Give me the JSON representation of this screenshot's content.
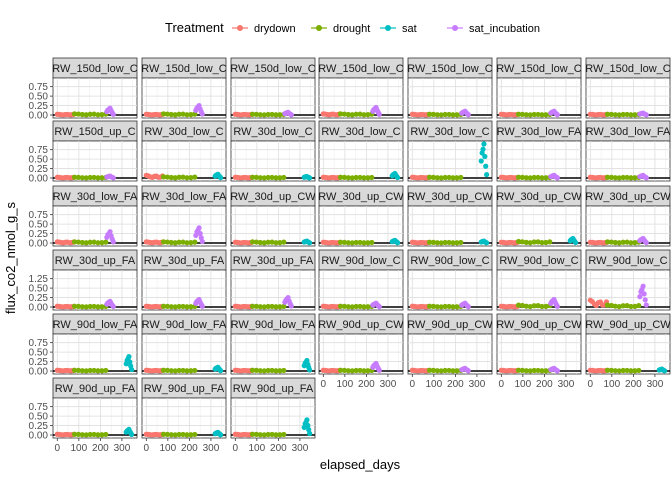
{
  "chart_data": {
    "type": "scatter",
    "xlabel": "elapsed_days",
    "ylabel": "flux_co2_nmol_g_s",
    "legend": {
      "title": "Treatment",
      "position": "top",
      "entries": [
        {
          "name": "drydown",
          "color": "#F8766D"
        },
        {
          "name": "drought",
          "color": "#7CAE00"
        },
        {
          "name": "sat",
          "color": "#00BFC4"
        },
        {
          "name": "sat_incubation",
          "color": "#C77CFF"
        }
      ]
    },
    "xlim": [
      -20,
      370
    ],
    "x_ticks": [
      0,
      100,
      200,
      300
    ],
    "y_ticks_default": [
      "0.00",
      "0.25",
      "0.50",
      "0.75"
    ],
    "y_ticks_row4": [
      "0.00",
      "0.25",
      "0.50",
      "1.25"
    ],
    "grid": true,
    "facets": [
      {
        "label": "RW_150d_low_C",
        "row": 0,
        "col": 0,
        "peaks": {
          "drydown": 0.02,
          "drought": 0.03,
          "sat_incubation": 0.18
        }
      },
      {
        "label": "RW_150d_low_C",
        "row": 0,
        "col": 1,
        "peaks": {
          "drydown": 0.02,
          "drought": 0.03,
          "sat_incubation": 0.25
        }
      },
      {
        "label": "RW_150d_low_C",
        "row": 0,
        "col": 2,
        "peaks": {
          "drydown": 0.02,
          "drought": 0.02,
          "sat_incubation": 0.07
        }
      },
      {
        "label": "RW_150d_low_C",
        "row": 0,
        "col": 3,
        "peaks": {
          "drydown": 0.03,
          "drought": 0.03,
          "sat_incubation": 0.2
        }
      },
      {
        "label": "RW_150d_low_C",
        "row": 0,
        "col": 4,
        "peaks": {
          "drydown": 0.02,
          "drought": 0.02,
          "sat_incubation": 0.1
        }
      },
      {
        "label": "RW_150d_low_C",
        "row": 0,
        "col": 5,
        "peaks": {
          "drydown": 0.02,
          "drought": 0.02,
          "sat_incubation": 0.1
        }
      },
      {
        "label": "RW_150d_low_C",
        "row": 0,
        "col": 6,
        "peaks": {
          "drydown": 0.02,
          "drought": 0.02,
          "sat_incubation": 0.05
        }
      },
      {
        "label": "RW_150d_up_C",
        "row": 1,
        "col": 0,
        "peaks": {
          "drydown": 0.02,
          "drought": 0.02,
          "sat_incubation": 0.05
        }
      },
      {
        "label": "RW_30d_low_C",
        "row": 1,
        "col": 1,
        "peaks": {
          "drydown": 0.07,
          "drought": 0.03,
          "sat": 0.1
        }
      },
      {
        "label": "RW_30d_low_C",
        "row": 1,
        "col": 2,
        "peaks": {
          "drydown": 0.02,
          "drought": 0.02,
          "sat": 0.04
        }
      },
      {
        "label": "RW_30d_low_C",
        "row": 1,
        "col": 3,
        "peaks": {
          "drydown": 0.02,
          "drought": 0.02,
          "sat": 0.12
        }
      },
      {
        "label": "RW_30d_low_C",
        "row": 1,
        "col": 4,
        "peaks": {
          "drydown": 0.02,
          "drought": 0.02,
          "sat": 0.9
        }
      },
      {
        "label": "RW_30d_low_FA",
        "row": 1,
        "col": 5,
        "peaks": {
          "drydown": 0.02,
          "drought": 0.02,
          "sat_incubation": 0.07
        }
      },
      {
        "label": "RW_30d_low_FA",
        "row": 1,
        "col": 6,
        "peaks": {
          "drydown": 0.02,
          "drought": 0.02,
          "sat_incubation": 0.07
        }
      },
      {
        "label": "RW_30d_low_FA",
        "row": 2,
        "col": 0,
        "peaks": {
          "drydown": 0.03,
          "drought": 0.03,
          "sat_incubation": 0.3
        }
      },
      {
        "label": "RW_30d_low_FA",
        "row": 2,
        "col": 1,
        "peaks": {
          "drydown": 0.03,
          "drought": 0.03,
          "sat_incubation": 0.4
        }
      },
      {
        "label": "RW_30d_up_CW",
        "row": 2,
        "col": 2,
        "peaks": {
          "drydown": 0.02,
          "drought": 0.03,
          "sat": 0.05
        }
      },
      {
        "label": "RW_30d_up_CW",
        "row": 2,
        "col": 3,
        "peaks": {
          "drydown": 0.02,
          "drought": 0.02,
          "sat": 0.07
        }
      },
      {
        "label": "RW_30d_up_CW",
        "row": 2,
        "col": 4,
        "peaks": {
          "drydown": 0.02,
          "drought": 0.02,
          "sat": 0.05
        }
      },
      {
        "label": "RW_30d_up_CW",
        "row": 2,
        "col": 5,
        "peaks": {
          "drydown": 0.02,
          "drought": 0.04,
          "sat": 0.12
        }
      },
      {
        "label": "RW_30d_up_CW",
        "row": 2,
        "col": 6,
        "peaks": {
          "drydown": 0.02,
          "drought": 0.03,
          "sat_incubation": 0.12
        }
      },
      {
        "label": "RW_30d_up_FA",
        "row": 3,
        "col": 0,
        "peaks": {
          "drydown": 0.02,
          "drought": 0.02,
          "sat_incubation": 0.15
        }
      },
      {
        "label": "RW_30d_up_FA",
        "row": 3,
        "col": 1,
        "peaks": {
          "drydown": 0.02,
          "drought": 0.02,
          "sat_incubation": 0.2
        }
      },
      {
        "label": "RW_30d_up_FA",
        "row": 3,
        "col": 2,
        "peaks": {
          "drydown": 0.02,
          "drought": 0.02,
          "sat_incubation": 0.25
        }
      },
      {
        "label": "RW_90d_low_C",
        "row": 3,
        "col": 3,
        "peaks": {
          "drydown": 0.02,
          "drought": 0.02,
          "sat_incubation": 0.1
        }
      },
      {
        "label": "RW_90d_low_C",
        "row": 3,
        "col": 4,
        "peaks": {
          "drydown": 0.02,
          "drought": 0.02,
          "sat_incubation": 0.1
        }
      },
      {
        "label": "RW_90d_low_C",
        "row": 3,
        "col": 5,
        "peaks": {
          "drydown": 0.02,
          "drought": 0.05,
          "sat_incubation": 0.2
        }
      },
      {
        "label": "RW_90d_low_C",
        "row": 3,
        "col": 6,
        "peaks": {
          "drydown": 0.18,
          "drought": 0.05,
          "sat_incubation": 0.55
        }
      },
      {
        "label": "RW_90d_low_FA",
        "row": 4,
        "col": 0,
        "peaks": {
          "drydown": 0.02,
          "drought": 0.02,
          "sat": 0.38
        }
      },
      {
        "label": "RW_90d_low_FA",
        "row": 4,
        "col": 1,
        "peaks": {
          "drydown": 0.02,
          "drought": 0.02,
          "sat": 0.1
        }
      },
      {
        "label": "RW_90d_low_FA",
        "row": 4,
        "col": 2,
        "peaks": {
          "drydown": 0.02,
          "drought": 0.02,
          "sat": 0.28
        }
      },
      {
        "label": "RW_90d_up_CW",
        "row": 4,
        "col": 3,
        "peaks": {
          "drydown": 0.02,
          "drought": 0.02,
          "sat_incubation": 0.2
        }
      },
      {
        "label": "RW_90d_up_CW",
        "row": 4,
        "col": 4,
        "peaks": {
          "drydown": 0.02,
          "drought": 0.02,
          "sat_incubation": 0.07
        }
      },
      {
        "label": "RW_90d_up_CW",
        "row": 4,
        "col": 5,
        "peaks": {
          "drydown": 0.02,
          "drought": 0.02,
          "sat_incubation": 0.07
        }
      },
      {
        "label": "RW_90d_up_CW",
        "row": 4,
        "col": 6,
        "peaks": {
          "drydown": 0.02,
          "drought": 0.02,
          "sat": 0.05
        }
      },
      {
        "label": "RW_90d_up_FA",
        "row": 5,
        "col": 0,
        "peaks": {
          "drydown": 0.02,
          "drought": 0.02,
          "sat": 0.15
        }
      },
      {
        "label": "RW_90d_up_FA",
        "row": 5,
        "col": 1,
        "peaks": {
          "drydown": 0.02,
          "drought": 0.02,
          "sat": 0.07
        }
      },
      {
        "label": "RW_90d_up_FA",
        "row": 5,
        "col": 2,
        "peaks": {
          "drydown": 0.02,
          "drought": 0.02,
          "sat": 0.4
        }
      }
    ],
    "treatment_x_ranges": {
      "drydown": [
        0,
        75
      ],
      "drought": [
        80,
        225
      ],
      "sat": [
        320,
        345
      ],
      "sat_incubation": [
        230,
        260
      ]
    }
  }
}
